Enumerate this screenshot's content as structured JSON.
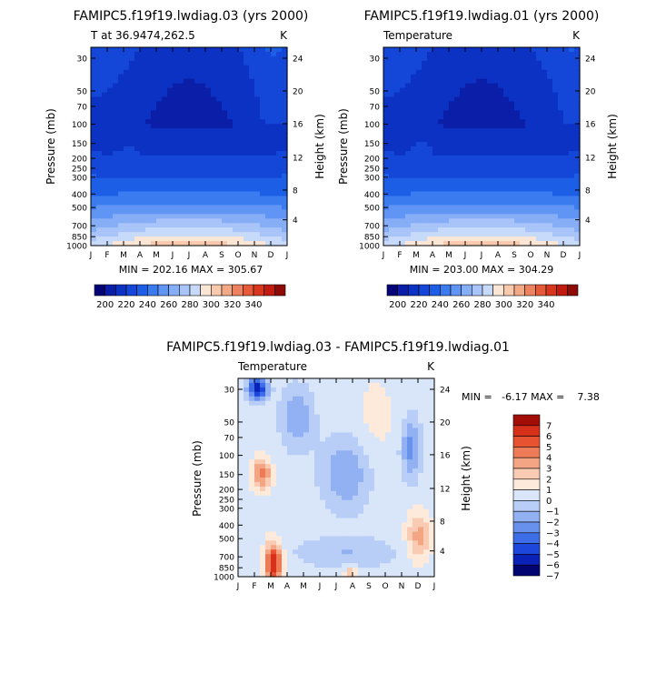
{
  "months": [
    "J",
    "F",
    "M",
    "A",
    "M",
    "J",
    "J",
    "A",
    "S",
    "O",
    "N",
    "D",
    "J"
  ],
  "pressure_ticks": [
    "30",
    "50",
    "70",
    "100",
    "150",
    "200",
    "250",
    "300",
    "400",
    "500",
    "700",
    "850",
    "1000"
  ],
  "height_ticks": [
    "24",
    "20",
    "16",
    "12",
    "8",
    "4"
  ],
  "colors": {
    "abs": [
      "#040378",
      "#0b1ea8",
      "#0c32c4",
      "#1446d8",
      "#1c5ee6",
      "#3a7cf0",
      "#6095f5",
      "#86aef7",
      "#a8c4f9",
      "#c8daf9",
      "#fbe6d6",
      "#f8c9ad",
      "#f3a886",
      "#ec8260",
      "#e55b3a",
      "#d9361e",
      "#c21b10",
      "#8d0a06"
    ],
    "diff": [
      "#020472",
      "#0b22b8",
      "#1d47dc",
      "#3d6ee8",
      "#6891ee",
      "#92b1f2",
      "#b8cef6",
      "#d9e6fa",
      "#fdeadb",
      "#f8cbb2",
      "#f4a584",
      "#ee7b57",
      "#e75331",
      "#d7301a",
      "#a20e07"
    ]
  },
  "charts": [
    {
      "title": "FAMIPC5.f19f19.lwdiag.03 (yrs 2000)",
      "subtitle": "T at 36.9474,262.5",
      "units": "K",
      "ylabel": "Pressure (mb)",
      "ylabel2": "Height (km)",
      "minmax": "MIN = 202.16 MAX = 305.67",
      "colorbar_labels": [
        "200",
        "220",
        "240",
        "260",
        "280",
        "300",
        "320",
        "340"
      ]
    },
    {
      "title": "FAMIPC5.f19f19.lwdiag.01 (yrs 2000)",
      "subtitle": "Temperature",
      "units": "K",
      "ylabel": "Pressure (mb)",
      "ylabel2": "Height (km)",
      "minmax": "MIN = 203.00 MAX = 304.29",
      "colorbar_labels": [
        "200",
        "220",
        "240",
        "260",
        "280",
        "300",
        "320",
        "340"
      ]
    },
    {
      "title": "FAMIPC5.f19f19.lwdiag.03 - FAMIPC5.f19f19.lwdiag.01",
      "subtitle": "Temperature",
      "units": "K",
      "ylabel": "Pressure (mb)",
      "ylabel2": "Height (km)",
      "minmax": "MIN =   -6.17 MAX =    7.38",
      "colorbar_labels": [
        "7",
        "6",
        "5",
        "4",
        "3",
        "2",
        "1",
        "0",
        "-1",
        "-2",
        "-3",
        "-4",
        "-5",
        "-6",
        "-7"
      ]
    }
  ],
  "chart_data": [
    {
      "type": "heatmap",
      "title": "FAMIPC5.f19f19.lwdiag.03 (yrs 2000)",
      "subtitle": "T at 36.9474,262.5",
      "units": "K",
      "x": [
        "J",
        "F",
        "M",
        "A",
        "M",
        "J",
        "J",
        "A",
        "S",
        "O",
        "N",
        "D",
        "J"
      ],
      "y_pressure_mb": [
        30,
        50,
        70,
        100,
        150,
        200,
        250,
        300,
        400,
        500,
        700,
        850,
        1000
      ],
      "y_height_km": [
        24,
        20,
        16,
        12,
        8,
        4
      ],
      "min": 202.16,
      "max": 305.67,
      "levels": [
        200,
        210,
        220,
        230,
        240,
        250,
        260,
        270,
        280,
        290,
        300,
        310,
        320,
        330,
        340
      ]
    },
    {
      "type": "heatmap",
      "title": "FAMIPC5.f19f19.lwdiag.01 (yrs 2000)",
      "subtitle": "Temperature",
      "units": "K",
      "x": [
        "J",
        "F",
        "M",
        "A",
        "M",
        "J",
        "J",
        "A",
        "S",
        "O",
        "N",
        "D",
        "J"
      ],
      "y_pressure_mb": [
        30,
        50,
        70,
        100,
        150,
        200,
        250,
        300,
        400,
        500,
        700,
        850,
        1000
      ],
      "y_height_km": [
        24,
        20,
        16,
        12,
        8,
        4
      ],
      "min": 203.0,
      "max": 304.29,
      "levels": [
        200,
        210,
        220,
        230,
        240,
        250,
        260,
        270,
        280,
        290,
        300,
        310,
        320,
        330,
        340
      ]
    },
    {
      "type": "heatmap",
      "title": "FAMIPC5.f19f19.lwdiag.03 - FAMIPC5.f19f19.lwdiag.01",
      "subtitle": "Temperature",
      "units": "K",
      "x": [
        "J",
        "F",
        "M",
        "A",
        "M",
        "J",
        "J",
        "A",
        "S",
        "O",
        "N",
        "D",
        "J"
      ],
      "y_pressure_mb": [
        30,
        50,
        70,
        100,
        150,
        200,
        250,
        300,
        400,
        500,
        700,
        850,
        1000
      ],
      "y_height_km": [
        24,
        20,
        16,
        12,
        8,
        4
      ],
      "min": -6.17,
      "max": 7.38,
      "levels": [
        -7,
        -6,
        -5,
        -4,
        -3,
        -2,
        -1,
        0,
        1,
        2,
        3,
        4,
        5,
        6,
        7
      ]
    }
  ]
}
